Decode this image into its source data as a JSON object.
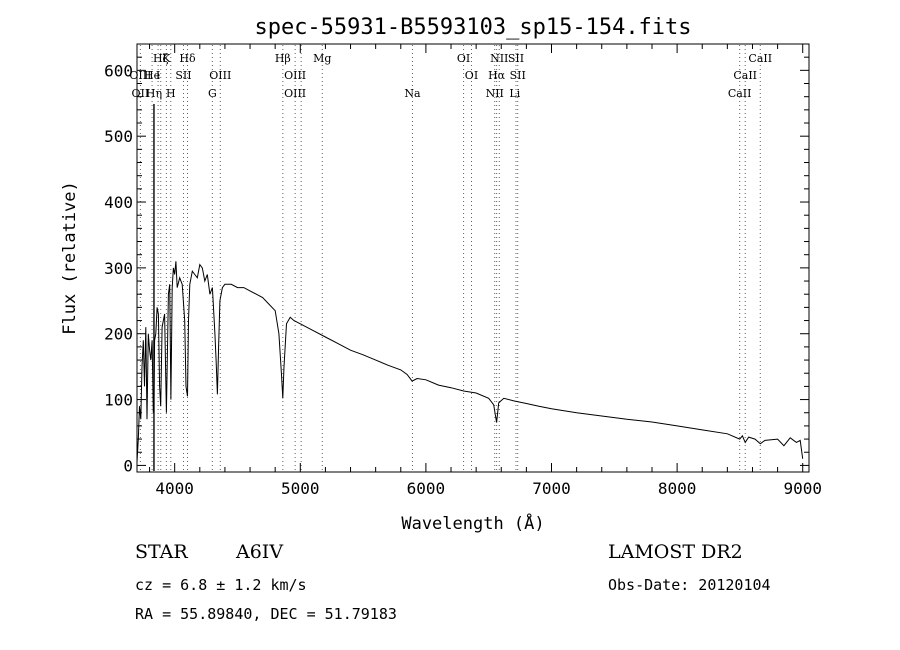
{
  "chart_data": {
    "type": "line",
    "title": "spec-55931-B5593103_sp15-154.fits",
    "xlabel": "Wavelength (Å)",
    "ylabel": "Flux (relative)",
    "xlim": [
      3700,
      9050
    ],
    "ylim": [
      -10,
      640
    ],
    "xticks": [
      4000,
      5000,
      6000,
      7000,
      8000,
      9000
    ],
    "yticks": [
      0,
      100,
      200,
      300,
      400,
      500,
      600
    ],
    "grid": false,
    "series": [
      {
        "values_x": [
          3700,
          3710,
          3720,
          3730,
          3740,
          3750,
          3760,
          3770,
          3780,
          3790,
          3800,
          3810,
          3820,
          3830,
          3835,
          3840,
          3850,
          3860,
          3870,
          3880,
          3889,
          3900,
          3920,
          3934,
          3950,
          3960,
          3970,
          3980,
          3990,
          4000,
          4010,
          4020,
          4040,
          4060,
          4080,
          4090,
          4102,
          4110,
          4120,
          4140,
          4160,
          4180,
          4200,
          4220,
          4240,
          4260,
          4280,
          4300,
          4320,
          4330,
          4340,
          4350,
          4360,
          4380,
          4400,
          4450,
          4500,
          4550,
          4600,
          4650,
          4700,
          4750,
          4800,
          4830,
          4850,
          4861,
          4870,
          4890,
          4920,
          4950,
          5000,
          5100,
          5200,
          5300,
          5400,
          5500,
          5600,
          5700,
          5800,
          5850,
          5890,
          5930,
          6000,
          6100,
          6200,
          6300,
          6400,
          6500,
          6540,
          6563,
          6580,
          6620,
          6700,
          6800,
          6900,
          7000,
          7200,
          7400,
          7600,
          7800,
          8000,
          8200,
          8400,
          8498,
          8520,
          8542,
          8570,
          8620,
          8662,
          8700,
          8800,
          8850,
          8900,
          8950,
          8980,
          9000
        ],
        "values_y": [
          5,
          40,
          90,
          70,
          150,
          190,
          120,
          210,
          70,
          200,
          175,
          160,
          190,
          80,
          100,
          190,
          200,
          240,
          230,
          120,
          90,
          210,
          230,
          80,
          260,
          275,
          100,
          270,
          300,
          290,
          310,
          270,
          285,
          275,
          220,
          120,
          105,
          220,
          275,
          295,
          290,
          285,
          305,
          300,
          280,
          290,
          260,
          270,
          200,
          160,
          108,
          180,
          250,
          270,
          275,
          275,
          270,
          270,
          265,
          260,
          255,
          245,
          235,
          200,
          140,
          102,
          150,
          215,
          225,
          220,
          215,
          205,
          195,
          185,
          175,
          168,
          160,
          152,
          145,
          138,
          128,
          132,
          130,
          122,
          118,
          113,
          110,
          102,
          92,
          65,
          95,
          102,
          98,
          94,
          90,
          86,
          80,
          75,
          70,
          66,
          60,
          54,
          48,
          40,
          45,
          35,
          43,
          40,
          33,
          38,
          40,
          30,
          42,
          35,
          38,
          10
        ]
      }
    ],
    "lines": {
      "top_row_1": [
        {
          "label": "Hζ",
          "x": 3889
        },
        {
          "label": "K",
          "x": 3934
        },
        {
          "label": "Hδ",
          "x": 4102
        },
        {
          "label": "Hβ",
          "x": 4861
        },
        {
          "label": "Mg",
          "x": 5175
        },
        {
          "label": "OI",
          "x": 6300
        },
        {
          "label": "NII",
          "x": 6584
        },
        {
          "label": "SII",
          "x": 6717
        },
        {
          "label": "CaII",
          "x": 8662
        }
      ],
      "top_row_2": [
        {
          "label": "OIII",
          "x": 3727
        },
        {
          "label": "He",
          "x": 3820
        },
        {
          "label": "I",
          "x": 3868
        },
        {
          "label": "SII",
          "x": 4070
        },
        {
          "label": "OIII",
          "x": 4363
        },
        {
          "label": "OIII",
          "x": 4959
        },
        {
          "label": "OI",
          "x": 6363
        },
        {
          "label": "Hα",
          "x": 6563
        },
        {
          "label": "SII",
          "x": 6731
        },
        {
          "label": "CaII",
          "x": 8542
        }
      ],
      "top_row_3": [
        {
          "label": "OII",
          "x": 3727
        },
        {
          "label": "Hη",
          "x": 3835
        },
        {
          "label": "H",
          "x": 3969
        },
        {
          "label": "G",
          "x": 4300
        },
        {
          "label": "OIII",
          "x": 4959
        },
        {
          "label": "Na",
          "x": 5893
        },
        {
          "label": "NII",
          "x": 6548
        },
        {
          "label": "Li",
          "x": 6708
        },
        {
          "label": "CaII",
          "x": 8498
        }
      ],
      "dotted_x": [
        3727,
        3820,
        3868,
        3889,
        3934,
        3969,
        4070,
        4102,
        4300,
        4363,
        4861,
        4959,
        5007,
        5175,
        5893,
        6300,
        6363,
        6548,
        6563,
        6584,
        6717,
        6731,
        8498,
        8542,
        8662
      ],
      "solid_x": [
        3835
      ]
    }
  },
  "info": {
    "class": "STAR",
    "subclass": "A6IV",
    "survey": "LAMOST DR2",
    "cz": "cz = 6.8 ± 1.2 km/s",
    "obsdate": "Obs-Date: 20120104",
    "radec": "RA =  55.89840, DEC =  51.79183"
  },
  "colors": {
    "spectrum": "#000000",
    "line_marker": "#d4302b",
    "axis": "#000000"
  }
}
